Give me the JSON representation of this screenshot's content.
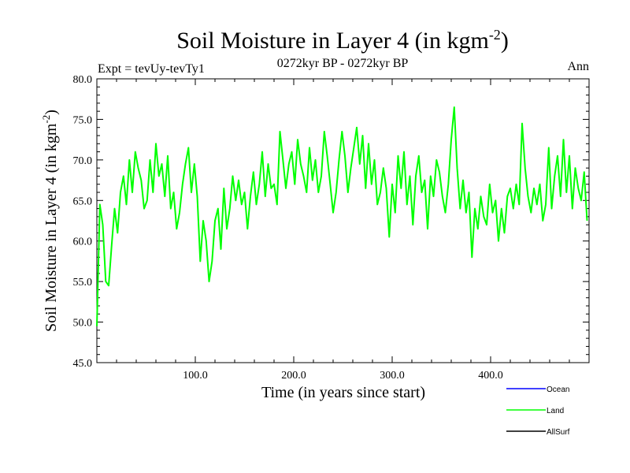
{
  "header": {
    "title_main": "Soil Moisture in Layer 4 (in kgm",
    "title_sup": "-2",
    "title_end": ")",
    "subtitle": "0272kyr BP - 0272kyr BP",
    "left_label": "Expt = tevUy-tevTy1",
    "right_label": "Ann"
  },
  "chart_data": {
    "type": "line",
    "xlabel": "Time (in years since start)",
    "ylabel_main": "Soil Moisture in Layer 4 (in kgm",
    "ylabel_sup": "-2",
    "ylabel_end": ")",
    "xlim": [
      0,
      500
    ],
    "ylim": [
      45,
      80
    ],
    "x_ticks": [
      100,
      200,
      300,
      400
    ],
    "x_tick_labels": [
      "100.0",
      "200.0",
      "300.0",
      "400.0"
    ],
    "y_ticks": [
      45,
      50,
      55,
      60,
      65,
      70,
      75,
      80
    ],
    "y_tick_labels": [
      "45.0",
      "50.0",
      "55.0",
      "60.0",
      "65.0",
      "70.0",
      "75.0",
      "80.0"
    ],
    "legend": {
      "placement": "bottom-right",
      "entries": [
        {
          "name": "Ocean",
          "color": "#0000ff"
        },
        {
          "name": "Land",
          "color": "#00ff00"
        },
        {
          "name": "AllSurf",
          "color": "#000000"
        }
      ]
    },
    "series": [
      {
        "name": "Land",
        "color": "#00ff00",
        "x": [
          0,
          3,
          6,
          9,
          12,
          15,
          18,
          21,
          24,
          27,
          30,
          33,
          36,
          39,
          42,
          45,
          48,
          51,
          54,
          57,
          60,
          63,
          66,
          69,
          72,
          75,
          78,
          81,
          84,
          87,
          90,
          93,
          96,
          99,
          102,
          105,
          108,
          111,
          114,
          117,
          120,
          123,
          126,
          129,
          132,
          135,
          138,
          141,
          144,
          147,
          150,
          153,
          156,
          159,
          162,
          165,
          168,
          171,
          174,
          177,
          180,
          183,
          186,
          189,
          192,
          195,
          198,
          201,
          204,
          207,
          210,
          213,
          216,
          219,
          222,
          225,
          228,
          231,
          234,
          237,
          240,
          243,
          246,
          249,
          252,
          255,
          258,
          261,
          264,
          267,
          270,
          273,
          276,
          279,
          282,
          285,
          288,
          291,
          294,
          297,
          300,
          303,
          306,
          309,
          312,
          315,
          318,
          321,
          324,
          327,
          330,
          333,
          336,
          339,
          342,
          345,
          348,
          351,
          354,
          357,
          360,
          363,
          366,
          369,
          372,
          375,
          378,
          381,
          384,
          387,
          390,
          393,
          396,
          399,
          402,
          405,
          408,
          411,
          414,
          417,
          420,
          423,
          426,
          429,
          432,
          435,
          438,
          441,
          444,
          447,
          450,
          453,
          456,
          459,
          462,
          465,
          468,
          471,
          474,
          477,
          480,
          483,
          486,
          489,
          492,
          495,
          498
        ],
        "values": [
          49.5,
          64.5,
          62.0,
          55.0,
          54.5,
          59.5,
          64.0,
          61.0,
          66.0,
          68.0,
          64.5,
          70.0,
          66.0,
          71.0,
          69.0,
          67.5,
          64.0,
          65.0,
          70.0,
          66.0,
          72.0,
          68.0,
          69.5,
          65.5,
          70.5,
          64.0,
          66.0,
          61.5,
          63.5,
          67.0,
          69.5,
          71.5,
          66.0,
          69.5,
          65.5,
          57.5,
          62.5,
          60.0,
          55.0,
          57.5,
          62.5,
          64.0,
          59.0,
          66.5,
          61.5,
          64.0,
          68.0,
          65.0,
          67.5,
          64.5,
          66.0,
          61.5,
          65.5,
          68.5,
          64.5,
          67.0,
          71.0,
          65.5,
          69.5,
          66.5,
          67.0,
          64.5,
          73.5,
          70.0,
          66.5,
          69.5,
          71.0,
          67.0,
          72.5,
          69.5,
          68.0,
          66.0,
          71.5,
          67.5,
          70.0,
          66.0,
          68.0,
          73.5,
          70.5,
          67.0,
          63.5,
          66.0,
          70.0,
          73.5,
          70.5,
          66.0,
          69.0,
          71.5,
          74.0,
          69.5,
          73.0,
          66.5,
          72.0,
          67.0,
          70.0,
          64.5,
          66.0,
          69.0,
          66.5,
          60.5,
          67.0,
          63.5,
          70.5,
          66.5,
          71.0,
          64.5,
          68.0,
          62.0,
          68.0,
          70.5,
          66.0,
          67.5,
          61.5,
          68.0,
          65.5,
          70.0,
          68.5,
          65.5,
          63.5,
          67.0,
          72.5,
          76.5,
          69.0,
          64.0,
          67.5,
          63.5,
          66.0,
          58.0,
          64.0,
          61.5,
          65.5,
          63.0,
          62.0,
          67.0,
          63.5,
          65.0,
          60.0,
          64.0,
          61.0,
          65.5,
          66.5,
          64.0,
          67.0,
          64.5,
          74.5,
          69.0,
          65.5,
          63.5,
          66.5,
          64.5,
          67.0,
          62.5,
          64.5,
          71.5,
          64.0,
          68.0,
          70.5,
          65.5,
          72.5,
          66.0,
          70.5,
          64.0,
          69.0,
          66.5,
          65.0,
          68.5,
          62.5
        ]
      }
    ]
  }
}
